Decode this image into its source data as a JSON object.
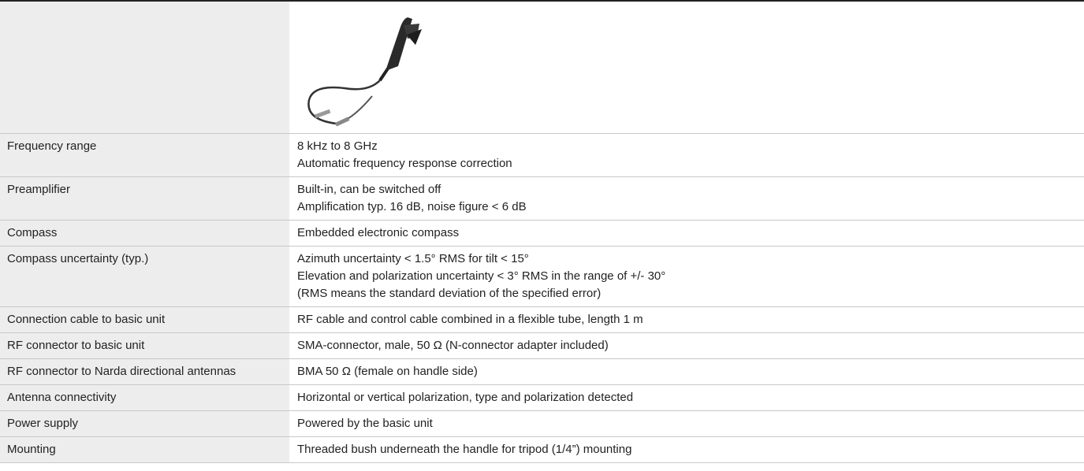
{
  "table": {
    "rows": [
      {
        "label": "Frequency range",
        "lines": [
          "8 kHz to 8 GHz",
          "Automatic frequency response correction"
        ]
      },
      {
        "label": "Preamplifier",
        "lines": [
          "Built-in, can be switched off",
          "Amplification typ. 16 dB, noise figure < 6 dB"
        ]
      },
      {
        "label": "Compass",
        "lines": [
          "Embedded electronic compass"
        ]
      },
      {
        "label": "Compass uncertainty (typ.)",
        "lines": [
          "Azimuth uncertainty < 1.5° RMS for tilt < 15°",
          "Elevation and polarization uncertainty < 3° RMS in the range of +/- 30°",
          "(RMS means the standard deviation of the specified error)"
        ]
      },
      {
        "label": "Connection cable to basic unit",
        "lines": [
          "RF cable and control cable combined in a flexible tube, length 1 m"
        ]
      },
      {
        "label": "RF connector to basic unit",
        "lines": [
          "SMA-connector, male, 50 Ω (N-connector adapter included)"
        ]
      },
      {
        "label": "RF connector to Narda directional antennas",
        "lines": [
          "BMA 50 Ω (female on handle side)"
        ]
      },
      {
        "label": "Antenna connectivity",
        "lines": [
          "Horizontal or vertical polarization, type and polarization detected"
        ]
      },
      {
        "label": "Power supply",
        "lines": [
          "Powered by the basic unit"
        ]
      },
      {
        "label": "Mounting",
        "lines": [
          "Threaded bush underneath the handle for tripod (1/4”) mounting"
        ]
      }
    ]
  }
}
